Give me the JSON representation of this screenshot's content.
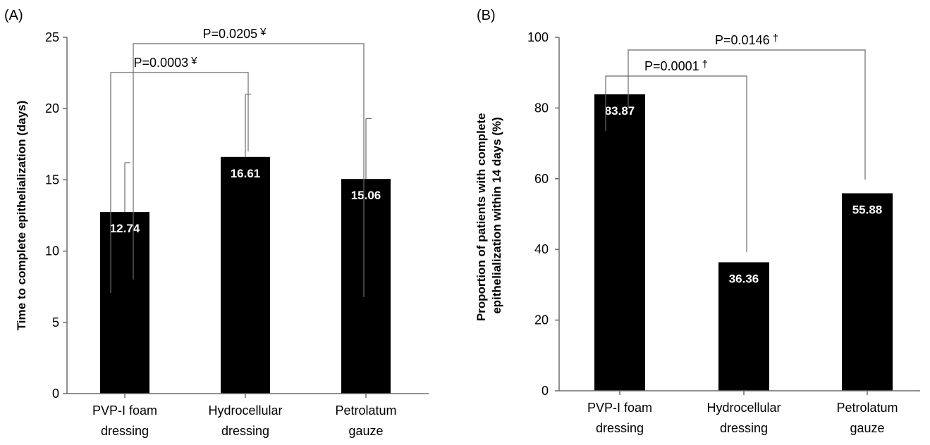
{
  "chart_data": [
    {
      "type": "bar",
      "panel_label": "(A)",
      "ylabel": "Time to complete epithelialization (days)",
      "categories": [
        [
          "PVP-I foam",
          "dressing"
        ],
        [
          "Hydrocellular",
          "dressing"
        ],
        [
          "Petrolatum",
          "gauze"
        ]
      ],
      "values": [
        12.74,
        16.61,
        15.06
      ],
      "value_labels": [
        "12.74",
        "16.61",
        "15.06"
      ],
      "error_upper": [
        16.2,
        21.0,
        19.3
      ],
      "ylim": [
        0,
        25
      ],
      "yticks": [
        0,
        5,
        10,
        15,
        20,
        25
      ],
      "color": "#000000",
      "comparisons": [
        {
          "from": 0,
          "to": 1,
          "text": "P=0.0003",
          "symbol": "¥"
        },
        {
          "from": 0,
          "to": 2,
          "text": "P=0.0205",
          "symbol": "¥"
        }
      ]
    },
    {
      "type": "bar",
      "panel_label": "(B)",
      "ylabel": [
        "Proportion of patients with complete",
        "epithelialization within 14 days (%)"
      ],
      "categories": [
        [
          "PVP-I foam",
          "dressing"
        ],
        [
          "Hydrocellular",
          "dressing"
        ],
        [
          "Petrolatum",
          "gauze"
        ]
      ],
      "values": [
        83.87,
        36.36,
        55.88
      ],
      "value_labels": [
        "83.87",
        "36.36",
        "55.88"
      ],
      "ylim": [
        0,
        100
      ],
      "yticks": [
        0,
        20,
        40,
        60,
        80,
        100
      ],
      "color": "#000000",
      "comparisons": [
        {
          "from": 0,
          "to": 1,
          "text": "P=0.0001",
          "symbol": "†"
        },
        {
          "from": 0,
          "to": 2,
          "text": "P=0.0146",
          "symbol": "†"
        }
      ]
    }
  ]
}
